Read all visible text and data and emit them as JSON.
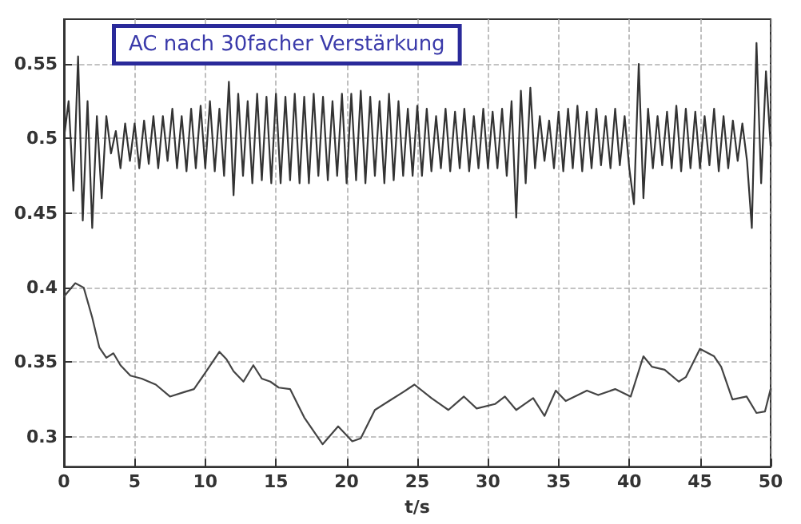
{
  "chart_data": {
    "type": "line",
    "xlabel": "t/s",
    "annotations": [
      "AC nach 30facher Verstärkung"
    ],
    "xlim": [
      0,
      50
    ],
    "xticks": [
      0,
      5,
      10,
      15,
      20,
      25,
      30,
      35,
      40,
      45,
      50
    ],
    "ylim": [
      0.28,
      0.58
    ],
    "yticks": [
      0.3,
      0.35,
      0.4,
      0.45,
      0.5,
      0.55
    ],
    "grid": true,
    "marker": "none",
    "line_style": "solid",
    "series": [
      {
        "color": "#333333",
        "x": [
          0,
          0.33,
          0.67,
          1,
          1.33,
          1.67,
          2,
          2.33,
          2.67,
          3,
          3.33,
          3.67,
          4,
          4.33,
          4.67,
          5,
          5.33,
          5.67,
          6,
          6.33,
          6.67,
          7,
          7.33,
          7.67,
          8,
          8.33,
          8.67,
          9,
          9.33,
          9.67,
          10,
          10.33,
          10.67,
          11,
          11.33,
          11.67,
          12,
          12.33,
          12.67,
          13,
          13.33,
          13.67,
          14,
          14.33,
          14.67,
          15,
          15.33,
          15.67,
          16,
          16.33,
          16.67,
          17,
          17.33,
          17.67,
          18,
          18.33,
          18.67,
          19,
          19.33,
          19.67,
          20,
          20.33,
          20.67,
          21,
          21.33,
          21.67,
          22,
          22.33,
          22.67,
          23,
          23.33,
          23.67,
          24,
          24.33,
          24.67,
          25,
          25.33,
          25.67,
          26,
          26.33,
          26.67,
          27,
          27.33,
          27.67,
          28,
          28.33,
          28.67,
          29,
          29.33,
          29.67,
          30,
          30.33,
          30.67,
          31,
          31.33,
          31.67,
          32,
          32.33,
          32.67,
          33,
          33.33,
          33.67,
          34,
          34.33,
          34.67,
          35,
          35.33,
          35.67,
          36,
          36.33,
          36.67,
          37,
          37.33,
          37.67,
          38,
          38.33,
          38.67,
          39,
          39.33,
          39.67,
          40,
          40.33,
          40.67,
          41,
          41.33,
          41.67,
          42,
          42.33,
          42.67,
          43,
          43.33,
          43.67,
          44,
          44.33,
          44.67,
          45,
          45.33,
          45.67,
          46,
          46.33,
          46.67,
          47,
          47.33,
          47.67,
          48,
          48.33,
          48.67,
          49,
          49.33,
          49.67,
          50
        ],
        "values": [
          0.5,
          0.525,
          0.465,
          0.555,
          0.445,
          0.525,
          0.44,
          0.515,
          0.46,
          0.515,
          0.49,
          0.505,
          0.48,
          0.51,
          0.485,
          0.51,
          0.48,
          0.512,
          0.483,
          0.515,
          0.48,
          0.515,
          0.485,
          0.52,
          0.48,
          0.515,
          0.478,
          0.52,
          0.48,
          0.522,
          0.48,
          0.525,
          0.478,
          0.52,
          0.475,
          0.538,
          0.462,
          0.53,
          0.475,
          0.525,
          0.47,
          0.53,
          0.472,
          0.528,
          0.47,
          0.53,
          0.47,
          0.528,
          0.472,
          0.53,
          0.47,
          0.528,
          0.47,
          0.53,
          0.475,
          0.528,
          0.472,
          0.525,
          0.475,
          0.53,
          0.47,
          0.53,
          0.472,
          0.532,
          0.47,
          0.528,
          0.475,
          0.525,
          0.47,
          0.53,
          0.472,
          0.525,
          0.475,
          0.52,
          0.475,
          0.522,
          0.475,
          0.52,
          0.478,
          0.515,
          0.48,
          0.52,
          0.478,
          0.518,
          0.48,
          0.52,
          0.478,
          0.515,
          0.48,
          0.52,
          0.48,
          0.518,
          0.48,
          0.52,
          0.475,
          0.525,
          0.447,
          0.532,
          0.47,
          0.534,
          0.48,
          0.515,
          0.485,
          0.512,
          0.48,
          0.518,
          0.478,
          0.52,
          0.48,
          0.522,
          0.478,
          0.518,
          0.48,
          0.52,
          0.482,
          0.515,
          0.48,
          0.52,
          0.482,
          0.515,
          0.48,
          0.456,
          0.55,
          0.46,
          0.52,
          0.48,
          0.515,
          0.482,
          0.518,
          0.48,
          0.522,
          0.478,
          0.52,
          0.48,
          0.518,
          0.48,
          0.515,
          0.482,
          0.52,
          0.478,
          0.515,
          0.48,
          0.512,
          0.485,
          0.51,
          0.485,
          0.44,
          0.564,
          0.47,
          0.545,
          0.495
        ]
      },
      {
        "color": "#444444",
        "x": [
          0,
          0.8,
          1.4,
          2,
          2.5,
          3,
          3.5,
          4,
          4.7,
          5.5,
          6.5,
          7.5,
          8.5,
          9.2,
          10,
          11,
          11.5,
          12,
          12.7,
          13.4,
          14,
          14.6,
          15.2,
          16,
          17,
          18.3,
          19.4,
          20.4,
          21,
          22,
          23,
          24,
          24.8,
          26,
          27.2,
          28.3,
          29.2,
          30.5,
          31.2,
          32,
          33.2,
          34,
          34.8,
          35.5,
          37,
          37.8,
          39,
          40.1,
          41,
          41.6,
          42.5,
          43.5,
          44,
          45,
          46,
          46.5,
          47.3,
          48.3,
          49,
          49.6,
          50
        ],
        "values": [
          0.394,
          0.403,
          0.4,
          0.38,
          0.36,
          0.353,
          0.356,
          0.348,
          0.341,
          0.339,
          0.335,
          0.327,
          0.33,
          0.332,
          0.343,
          0.357,
          0.352,
          0.344,
          0.337,
          0.348,
          0.339,
          0.337,
          0.333,
          0.332,
          0.313,
          0.295,
          0.307,
          0.297,
          0.299,
          0.318,
          0.324,
          0.33,
          0.335,
          0.326,
          0.318,
          0.327,
          0.319,
          0.322,
          0.327,
          0.318,
          0.326,
          0.314,
          0.331,
          0.324,
          0.331,
          0.328,
          0.332,
          0.327,
          0.354,
          0.347,
          0.345,
          0.337,
          0.34,
          0.359,
          0.354,
          0.347,
          0.325,
          0.327,
          0.316,
          0.317,
          0.332
        ]
      }
    ]
  }
}
